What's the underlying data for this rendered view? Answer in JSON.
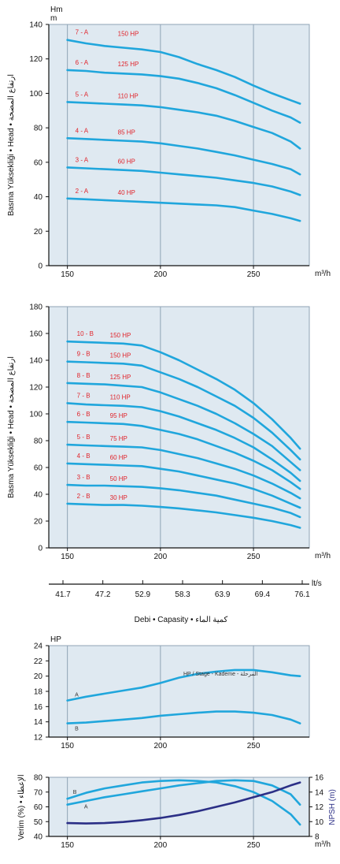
{
  "colors": {
    "curve": "#20a6dc",
    "npsh": "#2b2f86",
    "label": "#e0242b",
    "grid": "#8fa3b5",
    "plotbg": "#dfe9f1",
    "axis": "#111111"
  },
  "flow": {
    "title": "Debi • Capasity • كمية الماء",
    "unit": "lt/s",
    "ticks": [
      "41.7",
      "47.2",
      "52.9",
      "58.3",
      "63.9",
      "69.4",
      "76.1"
    ]
  },
  "chart_data": [
    {
      "id": "head-a",
      "type": "line",
      "ylabel": "Basma Yüksekliği • Head • ارتفاع المضخة",
      "yunit": "Hm\nm",
      "xunit": "m³/h",
      "xlim": [
        140,
        280
      ],
      "ylim": [
        0,
        140
      ],
      "xticks": [
        150,
        200,
        250
      ],
      "yticks": [
        0,
        20,
        40,
        60,
        80,
        100,
        120,
        140
      ],
      "series": [
        {
          "name": "7 - A",
          "hp": "150 HP",
          "x": [
            150,
            160,
            170,
            180,
            190,
            200,
            210,
            220,
            230,
            240,
            250,
            260,
            270,
            275
          ],
          "y": [
            131,
            129,
            127.5,
            126.5,
            125.5,
            124,
            121,
            117,
            113.5,
            109.5,
            104.5,
            100,
            96,
            94
          ]
        },
        {
          "name": "6 - A",
          "hp": "125 HP",
          "x": [
            150,
            160,
            170,
            180,
            190,
            200,
            210,
            220,
            230,
            240,
            250,
            260,
            270,
            275
          ],
          "y": [
            113.5,
            113,
            112,
            111.5,
            111,
            110,
            108.5,
            106,
            103,
            99,
            94.5,
            90,
            86,
            83
          ]
        },
        {
          "name": "5 - A",
          "hp": "110 HP",
          "x": [
            150,
            160,
            170,
            180,
            190,
            200,
            210,
            220,
            230,
            240,
            250,
            260,
            270,
            275
          ],
          "y": [
            95,
            94.5,
            94,
            93.5,
            93,
            92,
            90.5,
            89,
            87,
            84,
            80.5,
            77,
            72,
            68
          ]
        },
        {
          "name": "4 - A",
          "hp": "85 HP",
          "x": [
            150,
            160,
            170,
            180,
            190,
            200,
            210,
            220,
            230,
            240,
            250,
            260,
            270,
            275
          ],
          "y": [
            74,
            73.5,
            73,
            72.5,
            72,
            71,
            69.5,
            68,
            66,
            64,
            61.5,
            59,
            56,
            53
          ]
        },
        {
          "name": "3 - A",
          "hp": "60 HP",
          "x": [
            150,
            160,
            170,
            180,
            190,
            200,
            210,
            220,
            230,
            240,
            250,
            260,
            270,
            275
          ],
          "y": [
            57,
            56.5,
            56,
            55.5,
            55,
            54,
            53,
            52,
            51,
            49.5,
            48,
            46,
            43,
            41
          ]
        },
        {
          "name": "2 - A",
          "hp": "40 HP",
          "x": [
            150,
            160,
            170,
            180,
            190,
            200,
            210,
            220,
            230,
            240,
            250,
            260,
            270,
            275
          ],
          "y": [
            39,
            38.5,
            38,
            37.5,
            37,
            36.5,
            36,
            35.5,
            35,
            34,
            32,
            30,
            27.5,
            26
          ]
        }
      ]
    },
    {
      "id": "head-b",
      "type": "line",
      "ylabel": "Basma Yüksekliği • Head • ارتفاع المضخة",
      "xunit": "m³/h",
      "xlim": [
        140,
        280
      ],
      "ylim": [
        0,
        180
      ],
      "xticks": [
        150,
        200,
        250
      ],
      "yticks": [
        0,
        20,
        40,
        60,
        80,
        100,
        120,
        140,
        160,
        180
      ],
      "series": [
        {
          "name": "10 - B",
          "hp": "150 HP",
          "x": [
            150,
            160,
            170,
            180,
            190,
            200,
            210,
            220,
            230,
            240,
            250,
            260,
            270,
            275
          ],
          "y": [
            154,
            153.5,
            153,
            152.5,
            151,
            146,
            140,
            133,
            126,
            118,
            108,
            96,
            82,
            74
          ]
        },
        {
          "name": "9 - B",
          "hp": "150 HP",
          "x": [
            150,
            160,
            170,
            180,
            190,
            200,
            210,
            220,
            230,
            240,
            250,
            260,
            270,
            275
          ],
          "y": [
            139,
            138.5,
            138,
            137.5,
            136,
            131,
            126,
            120,
            113,
            106,
            97,
            86,
            73,
            66
          ]
        },
        {
          "name": "8 - B",
          "hp": "125 HP",
          "x": [
            150,
            160,
            170,
            180,
            190,
            200,
            210,
            220,
            230,
            240,
            250,
            260,
            270,
            275
          ],
          "y": [
            123,
            122.5,
            122,
            121,
            120,
            116,
            111,
            106,
            100,
            93,
            85,
            76,
            64,
            58
          ]
        },
        {
          "name": "7 - B",
          "hp": "110 HP",
          "x": [
            150,
            160,
            170,
            180,
            190,
            200,
            210,
            220,
            230,
            240,
            250,
            260,
            270,
            275
          ],
          "y": [
            108,
            107,
            106.5,
            106,
            105,
            102,
            98,
            93,
            88,
            82,
            75,
            66,
            56,
            50
          ]
        },
        {
          "name": "6 - B",
          "hp": "95 HP",
          "x": [
            150,
            160,
            170,
            180,
            190,
            200,
            210,
            220,
            230,
            240,
            250,
            260,
            270,
            275
          ],
          "y": [
            94,
            93.5,
            93,
            92.5,
            91,
            88,
            85,
            81,
            76,
            71,
            65,
            58,
            49,
            44
          ]
        },
        {
          "name": "5 - B",
          "hp": "75 HP",
          "x": [
            150,
            160,
            170,
            180,
            190,
            200,
            210,
            220,
            230,
            240,
            250,
            260,
            270,
            275
          ],
          "y": [
            77,
            76.5,
            76,
            75.5,
            75,
            73,
            70,
            67,
            63,
            59,
            54,
            48,
            41,
            37
          ]
        },
        {
          "name": "4 - B",
          "hp": "60 HP",
          "x": [
            150,
            160,
            170,
            180,
            190,
            200,
            210,
            220,
            230,
            240,
            250,
            260,
            270,
            275
          ],
          "y": [
            63,
            62.5,
            62,
            61.5,
            61,
            59,
            57,
            54,
            51,
            48,
            44,
            39,
            33,
            30
          ]
        },
        {
          "name": "3 - B",
          "hp": "50 HP",
          "x": [
            150,
            160,
            170,
            180,
            190,
            200,
            210,
            220,
            230,
            240,
            250,
            260,
            270,
            275
          ],
          "y": [
            47,
            46.5,
            46.5,
            46,
            45.5,
            44.5,
            43,
            41,
            39,
            36,
            33,
            30,
            26,
            23
          ]
        },
        {
          "name": "2 - B",
          "hp": "30 HP",
          "x": [
            150,
            160,
            170,
            180,
            190,
            200,
            210,
            220,
            230,
            240,
            250,
            260,
            270,
            275
          ],
          "y": [
            33,
            32.5,
            32,
            32,
            31.5,
            30.5,
            29.5,
            28,
            26.5,
            24.5,
            22.5,
            20,
            17,
            15
          ]
        }
      ]
    },
    {
      "id": "power",
      "type": "line",
      "yunit": "HP",
      "annotation": "HP / Stage - Kademe - المرحلة",
      "xlim": [
        140,
        280
      ],
      "ylim": [
        12,
        24
      ],
      "xticks": [
        150,
        200,
        250
      ],
      "yticks": [
        12,
        14,
        16,
        18,
        20,
        22,
        24
      ],
      "series": [
        {
          "name": "A",
          "x": [
            150,
            160,
            170,
            180,
            190,
            200,
            210,
            220,
            230,
            240,
            250,
            260,
            270,
            275
          ],
          "y": [
            16.8,
            17.3,
            17.7,
            18.1,
            18.5,
            19.1,
            19.8,
            20.3,
            20.6,
            20.8,
            20.8,
            20.5,
            20.1,
            20.0
          ]
        },
        {
          "name": "B",
          "x": [
            150,
            160,
            170,
            180,
            190,
            200,
            210,
            220,
            230,
            240,
            250,
            260,
            270,
            275
          ],
          "y": [
            13.8,
            13.9,
            14.1,
            14.3,
            14.5,
            14.8,
            15.0,
            15.2,
            15.35,
            15.35,
            15.2,
            14.9,
            14.3,
            13.8
          ]
        }
      ]
    },
    {
      "id": "efficiency-npsh",
      "type": "line",
      "ylabel": "Verim (%) • الإعطاء",
      "y2label": "NPSH (m)",
      "xunit": "m³/h",
      "xlim": [
        140,
        280
      ],
      "ylim": [
        40,
        80
      ],
      "y2lim": [
        8,
        16
      ],
      "xticks": [
        150,
        200,
        250
      ],
      "yticks": [
        40,
        50,
        60,
        70,
        80
      ],
      "y2ticks": [
        8,
        10,
        12,
        14,
        16
      ],
      "series": [
        {
          "name": "B",
          "axis": "left",
          "x": [
            150,
            160,
            170,
            180,
            190,
            200,
            210,
            220,
            230,
            240,
            250,
            260,
            270,
            275
          ],
          "y": [
            65.5,
            69.5,
            72.5,
            74.5,
            76.5,
            77.5,
            78,
            77.5,
            76.5,
            74,
            70,
            64,
            55,
            48
          ]
        },
        {
          "name": "A",
          "axis": "left",
          "x": [
            150,
            160,
            170,
            180,
            190,
            200,
            210,
            220,
            230,
            240,
            250,
            260,
            270,
            275
          ],
          "y": [
            61.5,
            64,
            66.5,
            68.5,
            70.5,
            72.5,
            74.5,
            76,
            77.5,
            78,
            77.5,
            74.5,
            68.5,
            61.5
          ]
        },
        {
          "name": "",
          "axis": "right",
          "x": [
            150,
            160,
            170,
            180,
            190,
            200,
            210,
            220,
            230,
            240,
            250,
            260,
            270,
            275
          ],
          "y": [
            9.8,
            9.75,
            9.8,
            9.95,
            10.2,
            10.5,
            10.9,
            11.4,
            12.0,
            12.6,
            13.3,
            14.0,
            14.9,
            15.3
          ]
        }
      ]
    }
  ]
}
